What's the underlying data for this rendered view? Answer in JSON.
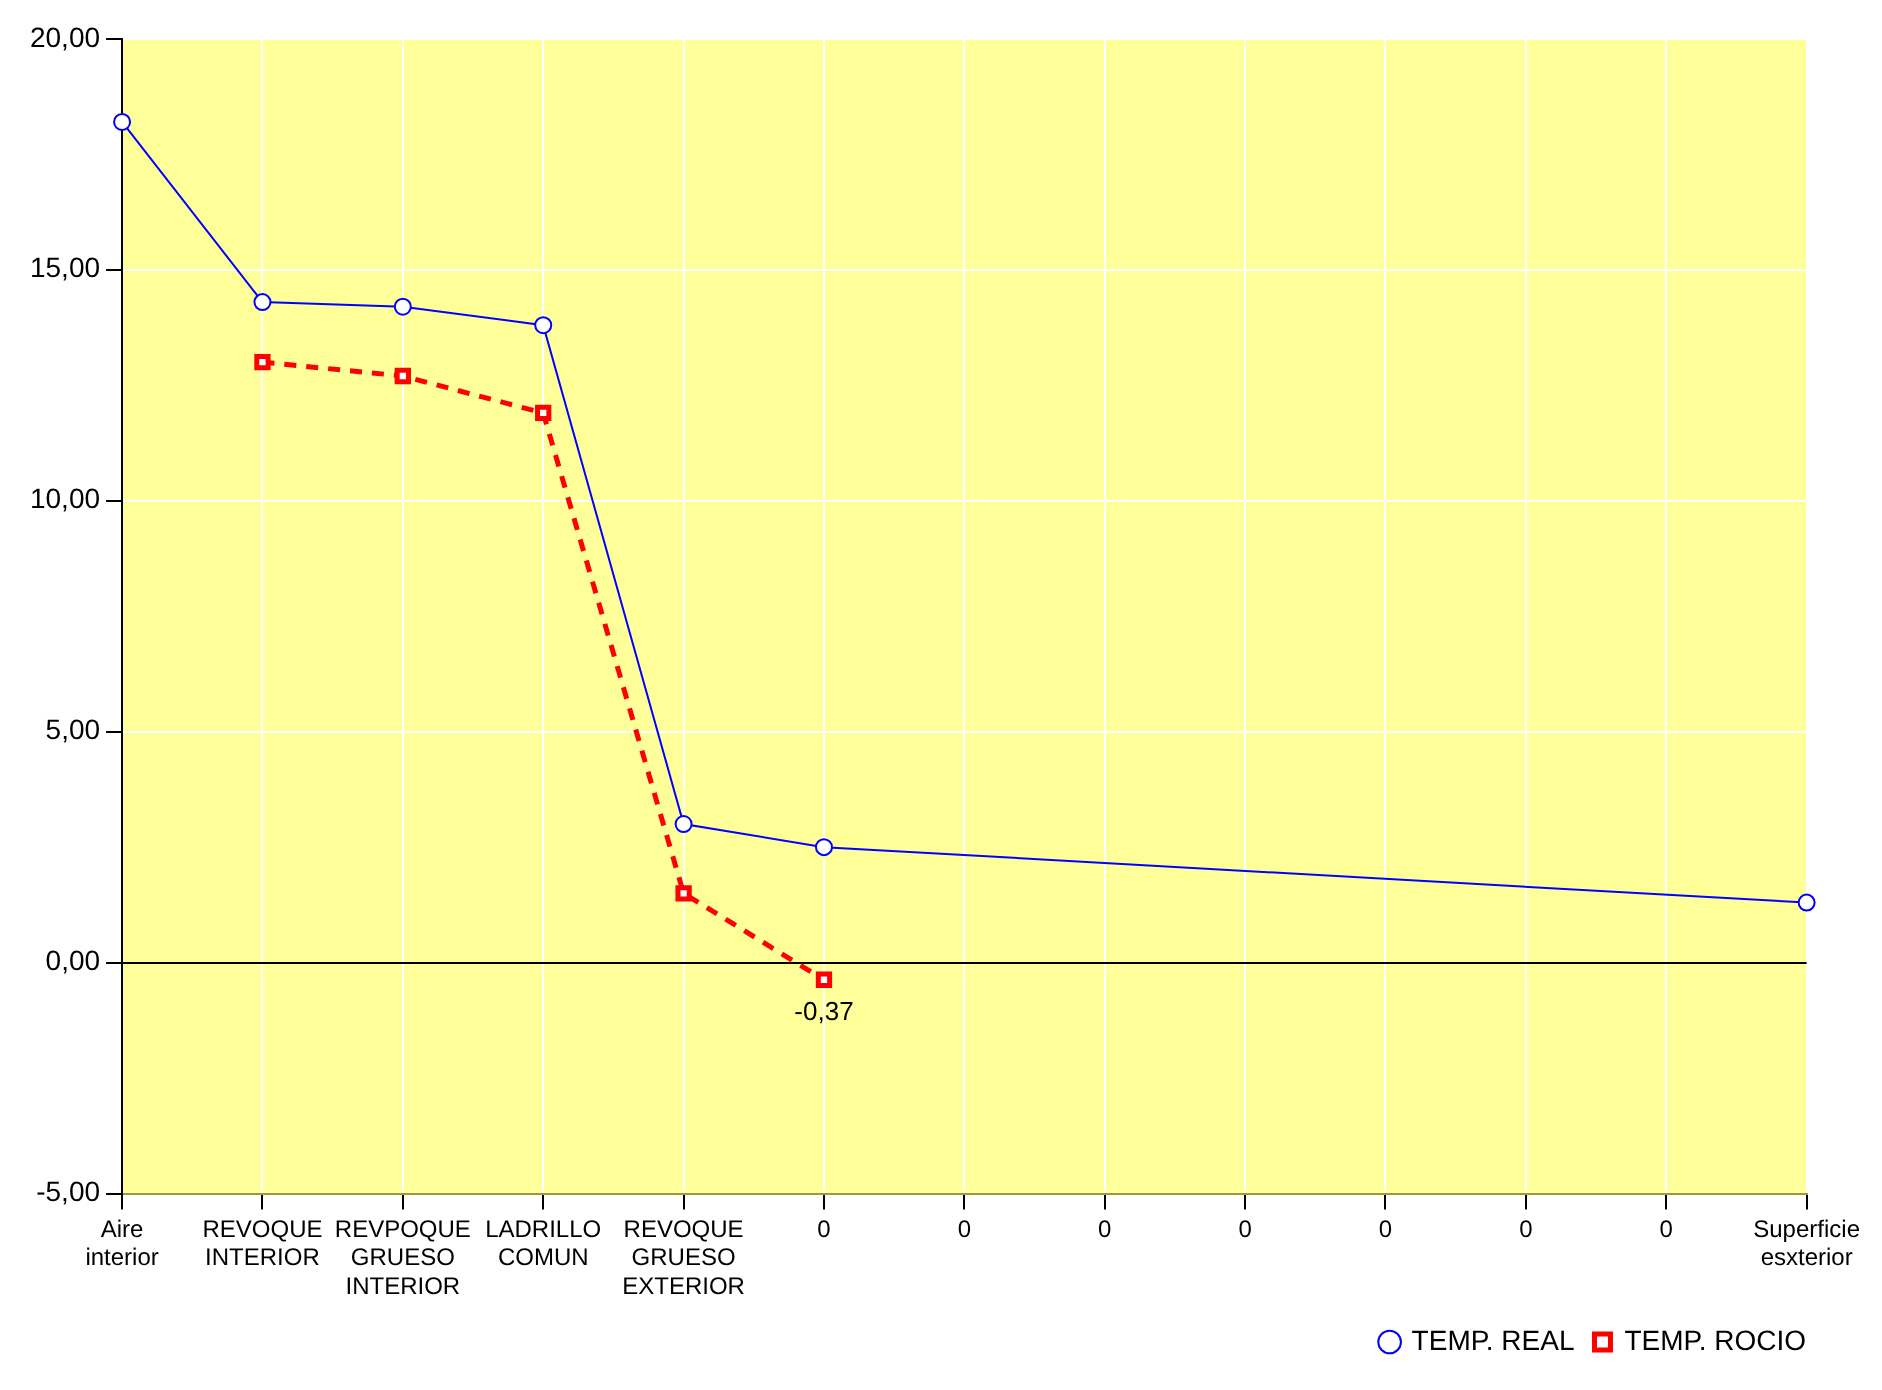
{
  "chart_data": {
    "type": "line",
    "categories": [
      "Aire interior",
      "REVOQUE INTERIOR",
      "REVPOQUE GRUESO INTERIOR",
      "LADRILLO COMUN",
      "REVOQUE GRUESO EXTERIOR",
      "0",
      "0",
      "0",
      "0",
      "0",
      "0",
      "0",
      "Superficie esxterior"
    ],
    "series": [
      {
        "name": "TEMP. REAL",
        "color": "#0000ff",
        "marker": "circle",
        "line_style": "solid",
        "values": [
          18.2,
          14.3,
          14.2,
          13.8,
          3.0,
          2.5,
          null,
          null,
          null,
          null,
          null,
          null,
          1.3
        ]
      },
      {
        "name": "TEMP. ROCIO",
        "color": "#ff0000",
        "marker": "square",
        "line_style": "dashed",
        "values": [
          null,
          13.0,
          12.7,
          11.9,
          1.5,
          -0.37,
          null,
          null,
          null,
          null,
          null,
          null,
          null
        ],
        "value_labels": [
          null,
          null,
          null,
          null,
          null,
          "-0,37",
          null,
          null,
          null,
          null,
          null,
          null,
          null
        ]
      }
    ],
    "ylim": [
      -5,
      20
    ],
    "yticks": [
      {
        "value": -5,
        "label": "-5,00"
      },
      {
        "value": 0,
        "label": "0,00"
      },
      {
        "value": 5,
        "label": "5,00"
      },
      {
        "value": 10,
        "label": "10,00"
      },
      {
        "value": 15,
        "label": "15,00"
      },
      {
        "value": 20,
        "label": "20,00"
      }
    ],
    "grid": true,
    "legend": "bottom right"
  }
}
